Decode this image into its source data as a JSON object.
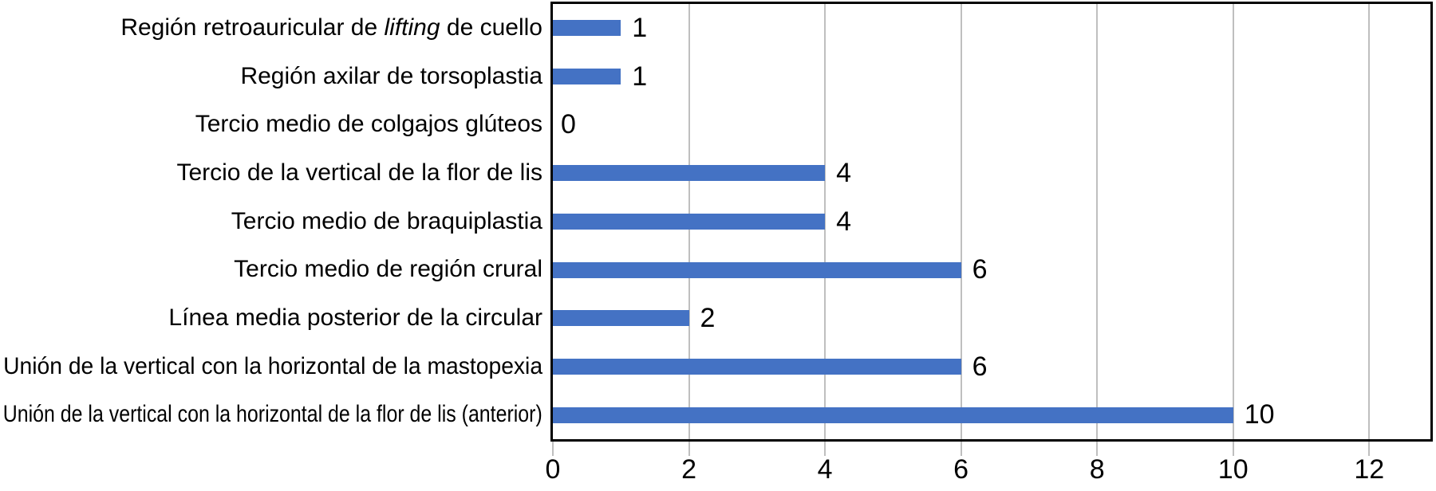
{
  "chart_data": {
    "type": "bar",
    "orientation": "horizontal",
    "title": "",
    "xlabel": "",
    "ylabel": "",
    "categories": [
      {
        "pre": "Región retroauricular de ",
        "italic": "lifting",
        "post": " de cuello"
      },
      {
        "pre": "Región axilar de torsoplastia",
        "italic": "",
        "post": ""
      },
      {
        "pre": "Tercio medio de colgajos glúteos",
        "italic": "",
        "post": ""
      },
      {
        "pre": "Tercio de la vertical de la flor de lis",
        "italic": "",
        "post": ""
      },
      {
        "pre": "Tercio medio de braquiplastia",
        "italic": "",
        "post": ""
      },
      {
        "pre": "Tercio medio de región crural",
        "italic": "",
        "post": ""
      },
      {
        "pre": "Línea media posterior de la circular",
        "italic": "",
        "post": ""
      },
      {
        "pre": "Unión de la vertical con la horizontal de la mastopexia",
        "italic": "",
        "post": ""
      },
      {
        "pre": "Unión de la vertical con la horizontal de la flor de lis (anterior)",
        "italic": "",
        "post": ""
      }
    ],
    "values": [
      1,
      1,
      0,
      4,
      4,
      6,
      2,
      6,
      10
    ],
    "value_labels": [
      "1",
      "1",
      "0",
      "4",
      "4",
      "6",
      "2",
      "6",
      "10"
    ],
    "xlim": [
      0,
      12.9
    ],
    "xticks": [
      0,
      2,
      4,
      6,
      8,
      10,
      12
    ],
    "xtick_labels": [
      "0",
      "2",
      "4",
      "6",
      "8",
      "10",
      "12"
    ],
    "grid": true,
    "legend": false,
    "colors": {
      "bar": "#4472C4",
      "gridline": "#BFBFBF",
      "axis": "#000000",
      "text": "#000000",
      "background": "#FFFFFF"
    }
  }
}
